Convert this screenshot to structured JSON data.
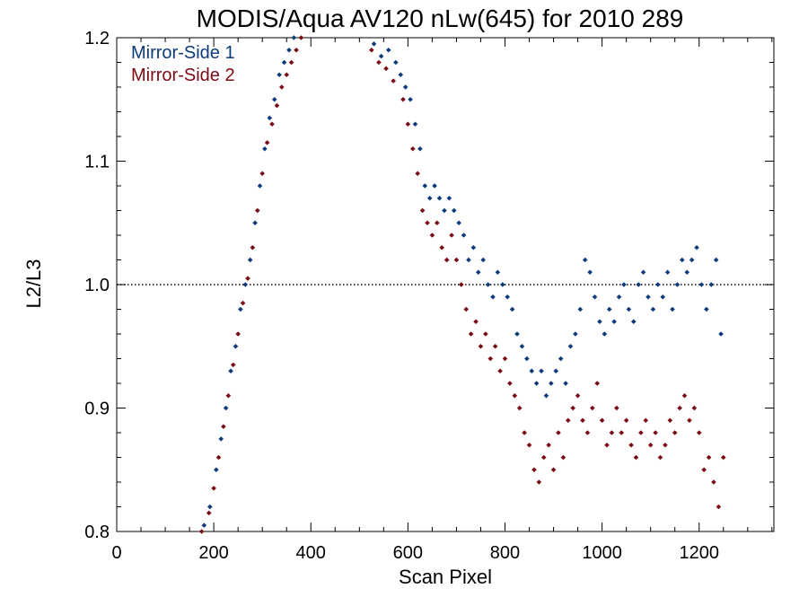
{
  "chart_data": {
    "type": "scatter",
    "title": "MODIS/Aqua AV120 nLw(645) for 2010 289",
    "xlabel": "Scan Pixel",
    "ylabel": "L2/L3",
    "xlim": [
      0,
      1354
    ],
    "ylim": [
      0.8,
      1.2
    ],
    "xticks": [
      "0",
      "200",
      "400",
      "600",
      "800",
      "1000",
      "1200"
    ],
    "yticks": [
      "0.8",
      "0.9",
      "1.0",
      "1.1",
      "1.2"
    ],
    "reference_line": {
      "y": 1.0,
      "style": "dotted"
    },
    "legend_position": "top-left",
    "marker": "diamond",
    "series": [
      {
        "name": "Mirror-Side 1",
        "color": "#0d3a7a",
        "points": [
          [
            180,
            0.805
          ],
          [
            192,
            0.82
          ],
          [
            205,
            0.85
          ],
          [
            215,
            0.875
          ],
          [
            225,
            0.9
          ],
          [
            235,
            0.93
          ],
          [
            245,
            0.95
          ],
          [
            255,
            0.98
          ],
          [
            265,
            1.0
          ],
          [
            275,
            1.02
          ],
          [
            285,
            1.05
          ],
          [
            295,
            1.08
          ],
          [
            305,
            1.11
          ],
          [
            315,
            1.135
          ],
          [
            325,
            1.15
          ],
          [
            335,
            1.17
          ],
          [
            345,
            1.18
          ],
          [
            355,
            1.19
          ],
          [
            365,
            1.2
          ],
          [
            530,
            1.195
          ],
          [
            545,
            1.185
          ],
          [
            560,
            1.19
          ],
          [
            575,
            1.18
          ],
          [
            585,
            1.17
          ],
          [
            595,
            1.16
          ],
          [
            605,
            1.15
          ],
          [
            615,
            1.13
          ],
          [
            625,
            1.11
          ],
          [
            635,
            1.08
          ],
          [
            645,
            1.07
          ],
          [
            655,
            1.08
          ],
          [
            665,
            1.07
          ],
          [
            675,
            1.06
          ],
          [
            685,
            1.07
          ],
          [
            695,
            1.06
          ],
          [
            705,
            1.05
          ],
          [
            715,
            1.04
          ],
          [
            725,
            1.02
          ],
          [
            735,
            1.03
          ],
          [
            745,
            1.01
          ],
          [
            755,
            1.02
          ],
          [
            765,
            1.0
          ],
          [
            775,
            0.99
          ],
          [
            785,
            1.01
          ],
          [
            795,
            1.0
          ],
          [
            805,
            0.99
          ],
          [
            815,
            0.98
          ],
          [
            825,
            0.96
          ],
          [
            835,
            0.95
          ],
          [
            845,
            0.94
          ],
          [
            855,
            0.93
          ],
          [
            865,
            0.92
          ],
          [
            875,
            0.93
          ],
          [
            885,
            0.91
          ],
          [
            895,
            0.92
          ],
          [
            905,
            0.93
          ],
          [
            915,
            0.94
          ],
          [
            925,
            0.92
          ],
          [
            935,
            0.95
          ],
          [
            945,
            0.96
          ],
          [
            955,
            0.98
          ],
          [
            965,
            1.02
          ],
          [
            975,
            1.01
          ],
          [
            985,
            0.99
          ],
          [
            995,
            0.97
          ],
          [
            1005,
            0.96
          ],
          [
            1015,
            0.98
          ],
          [
            1025,
            0.97
          ],
          [
            1035,
            0.99
          ],
          [
            1045,
            1.0
          ],
          [
            1055,
            0.98
          ],
          [
            1065,
            0.97
          ],
          [
            1075,
            1.0
          ],
          [
            1085,
            1.01
          ],
          [
            1095,
            0.99
          ],
          [
            1105,
            0.98
          ],
          [
            1115,
            1.0
          ],
          [
            1125,
            0.99
          ],
          [
            1135,
            1.01
          ],
          [
            1145,
            0.98
          ],
          [
            1155,
            1.0
          ],
          [
            1165,
            1.02
          ],
          [
            1175,
            1.01
          ],
          [
            1185,
            1.02
          ],
          [
            1195,
            1.03
          ],
          [
            1205,
            1.0
          ],
          [
            1215,
            0.98
          ],
          [
            1225,
            1.0
          ],
          [
            1235,
            1.02
          ],
          [
            1245,
            0.96
          ]
        ]
      },
      {
        "name": "Mirror-Side 2",
        "color": "#7a0a14",
        "points": [
          [
            175,
            0.8
          ],
          [
            190,
            0.815
          ],
          [
            200,
            0.835
          ],
          [
            210,
            0.86
          ],
          [
            220,
            0.885
          ],
          [
            230,
            0.91
          ],
          [
            240,
            0.935
          ],
          [
            250,
            0.96
          ],
          [
            260,
            0.985
          ],
          [
            270,
            1.005
          ],
          [
            280,
            1.03
          ],
          [
            290,
            1.06
          ],
          [
            300,
            1.09
          ],
          [
            310,
            1.115
          ],
          [
            320,
            1.13
          ],
          [
            330,
            1.145
          ],
          [
            340,
            1.16
          ],
          [
            350,
            1.17
          ],
          [
            360,
            1.18
          ],
          [
            370,
            1.19
          ],
          [
            380,
            1.2
          ],
          [
            525,
            1.19
          ],
          [
            540,
            1.18
          ],
          [
            555,
            1.175
          ],
          [
            570,
            1.165
          ],
          [
            590,
            1.15
          ],
          [
            600,
            1.13
          ],
          [
            610,
            1.11
          ],
          [
            620,
            1.09
          ],
          [
            630,
            1.06
          ],
          [
            640,
            1.05
          ],
          [
            650,
            1.04
          ],
          [
            660,
            1.05
          ],
          [
            670,
            1.03
          ],
          [
            680,
            1.02
          ],
          [
            690,
            1.04
          ],
          [
            700,
            1.02
          ],
          [
            710,
            1.0
          ],
          [
            720,
            0.98
          ],
          [
            730,
            0.96
          ],
          [
            740,
            0.97
          ],
          [
            750,
            0.95
          ],
          [
            760,
            0.96
          ],
          [
            770,
            0.94
          ],
          [
            780,
            0.95
          ],
          [
            790,
            0.93
          ],
          [
            800,
            0.94
          ],
          [
            810,
            0.92
          ],
          [
            820,
            0.91
          ],
          [
            830,
            0.9
          ],
          [
            840,
            0.88
          ],
          [
            850,
            0.87
          ],
          [
            860,
            0.85
          ],
          [
            870,
            0.84
          ],
          [
            880,
            0.86
          ],
          [
            890,
            0.87
          ],
          [
            900,
            0.85
          ],
          [
            910,
            0.88
          ],
          [
            920,
            0.86
          ],
          [
            930,
            0.89
          ],
          [
            940,
            0.9
          ],
          [
            950,
            0.91
          ],
          [
            960,
            0.89
          ],
          [
            970,
            0.88
          ],
          [
            980,
            0.9
          ],
          [
            990,
            0.92
          ],
          [
            1000,
            0.89
          ],
          [
            1010,
            0.87
          ],
          [
            1020,
            0.88
          ],
          [
            1030,
            0.9
          ],
          [
            1040,
            0.88
          ],
          [
            1050,
            0.89
          ],
          [
            1060,
            0.87
          ],
          [
            1070,
            0.86
          ],
          [
            1080,
            0.88
          ],
          [
            1090,
            0.89
          ],
          [
            1100,
            0.87
          ],
          [
            1110,
            0.88
          ],
          [
            1120,
            0.86
          ],
          [
            1130,
            0.87
          ],
          [
            1140,
            0.89
          ],
          [
            1150,
            0.88
          ],
          [
            1160,
            0.9
          ],
          [
            1170,
            0.91
          ],
          [
            1180,
            0.89
          ],
          [
            1190,
            0.9
          ],
          [
            1200,
            0.88
          ],
          [
            1210,
            0.85
          ],
          [
            1220,
            0.86
          ],
          [
            1230,
            0.84
          ],
          [
            1240,
            0.82
          ],
          [
            1250,
            0.86
          ]
        ]
      }
    ]
  }
}
